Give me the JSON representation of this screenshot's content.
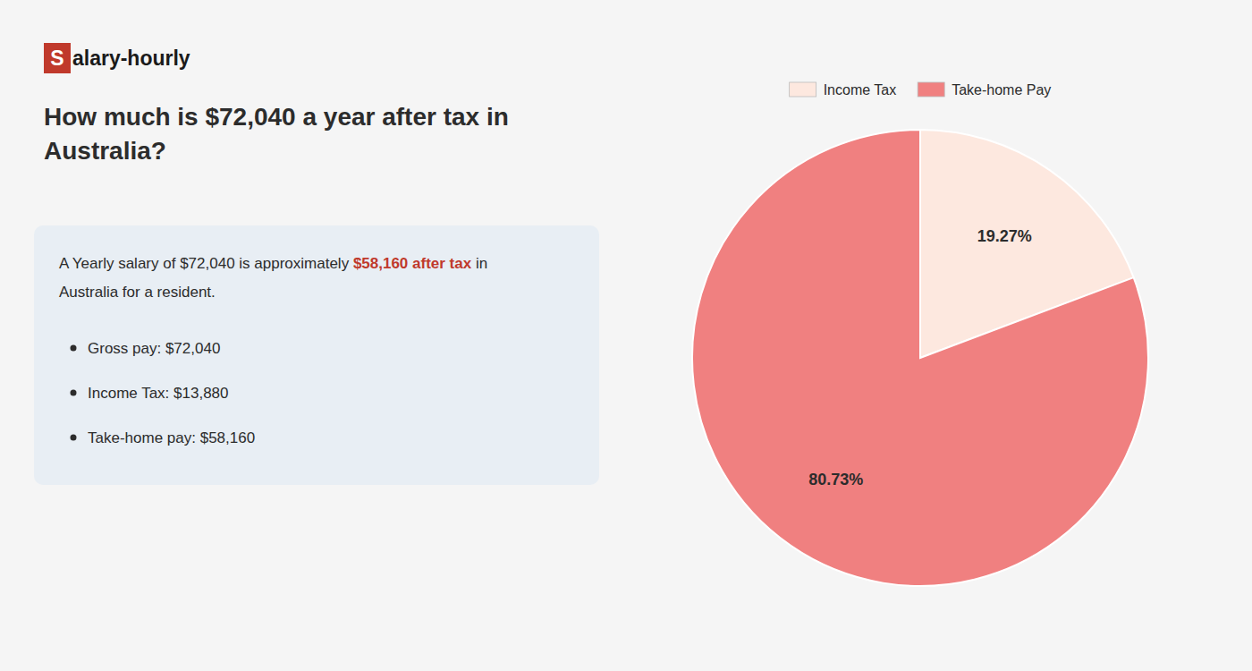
{
  "chart_data": {
    "type": "pie",
    "title": "How much is $72,040 a year after tax in\nAustralia?",
    "categories": [
      "Income Tax",
      "Take-home Pay"
    ],
    "values": [
      19.27,
      80.73
    ],
    "value_labels": [
      "19.27%",
      "80.73%"
    ],
    "colors": [
      "#fde8df",
      "#f08080"
    ],
    "data_labels": true,
    "legend": "top",
    "annotations": [
      {
        "text": "S",
        "color": "#c0392b"
      },
      {
        "text": "alary-hourly"
      },
      {
        "text": "A Yearly salary of $72,040 is approximately "
      },
      {
        "text": "$58,160 after tax",
        "color": "#c0392b"
      },
      {
        "text": " in"
      },
      {
        "text": "Australia for a resident."
      },
      {
        "text": "Gross pay: $72,040"
      },
      {
        "text": "Income Tax: $13,880"
      },
      {
        "text": "Take-home pay: $58,160"
      }
    ]
  }
}
